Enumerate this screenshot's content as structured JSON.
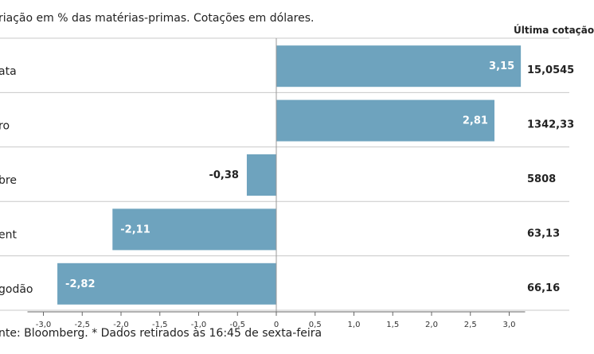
{
  "subtitle": "riação em % das matérias-primas. Cotações em dólares.",
  "column_header": "Última cotação",
  "source": "nte: Bloomberg.  * Dados retirados às 16:45 de sexta-feira",
  "colors": {
    "bar": "#6ea3be",
    "grid": "#c8c8c8",
    "zero_line": "#999999",
    "axis": "#666666"
  },
  "chart_data": {
    "type": "bar",
    "orientation": "horizontal",
    "title": "",
    "xlabel": "",
    "ylabel": "",
    "categories": [
      "ata",
      "ro",
      "bre",
      "ent",
      "godão"
    ],
    "values": [
      3.15,
      2.81,
      -0.38,
      -2.11,
      -2.82
    ],
    "value_labels": [
      "3,15",
      "2,81",
      "-0,38",
      "-2,11",
      "-2,82"
    ],
    "last_quotes": [
      "15,0545",
      "1342,33",
      "5808",
      "63,13",
      "66,16"
    ],
    "xlim": [
      -3.0,
      3.0
    ],
    "xticks": [
      -3.0,
      -2.5,
      -2.0,
      -1.5,
      -1.0,
      -0.5,
      0,
      0.5,
      1.0,
      1.5,
      2.0,
      2.5,
      3.0
    ],
    "xtick_labels": [
      "-3,0",
      "-2,5",
      "-2,0",
      "-1,5",
      "-1,0",
      "-0,5",
      "0",
      "0,5",
      "1,0",
      "1,5",
      "2,0",
      "2,5",
      "3,0"
    ],
    "grid": "horizontal separators"
  }
}
